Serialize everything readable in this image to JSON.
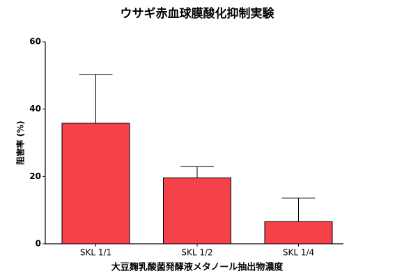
{
  "chart_data": {
    "type": "bar",
    "title": "ウサギ赤血球膜酸化抑制実験",
    "y_label": "阻害率 (%)",
    "x_label": "大豆麹乳酸菌発酵液メタノール抽出物濃度",
    "categories": [
      "SKL 1/1",
      "SKL 1/2",
      "SKL 1/4"
    ],
    "values": [
      35.8,
      19.6,
      6.6
    ],
    "errors": [
      14.5,
      3.3,
      7.0
    ],
    "color": "#f5424a",
    "ylim": [
      0,
      60
    ],
    "yticks": [
      0,
      20,
      40,
      60
    ],
    "grid": false
  }
}
